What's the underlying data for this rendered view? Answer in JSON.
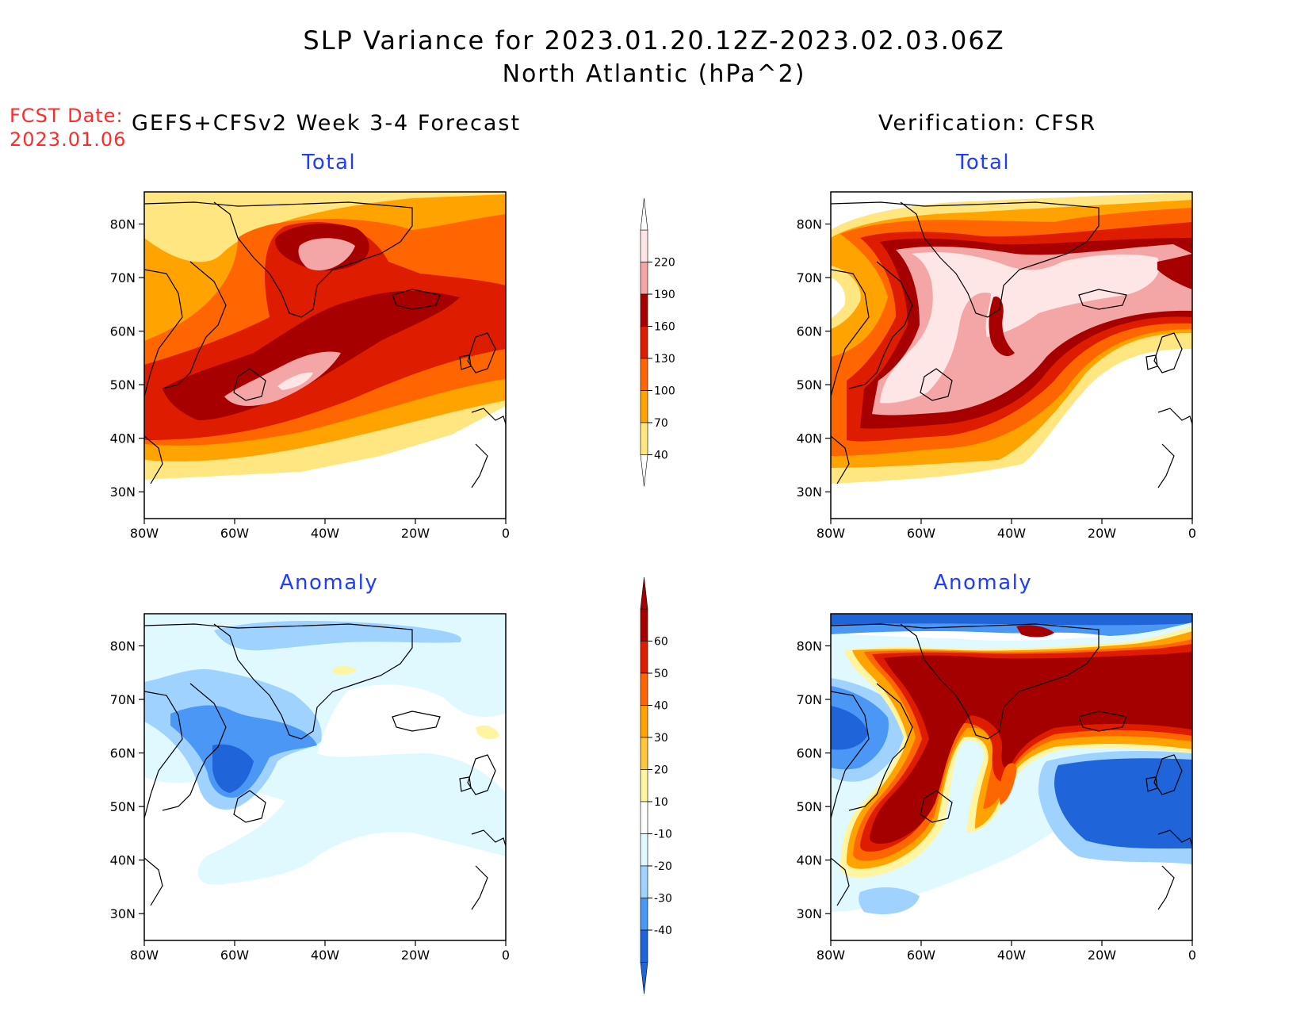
{
  "title": {
    "line1": "SLP Variance for 2023.01.20.12Z-2023.02.03.06Z",
    "line2": "North Atlantic (hPa^2)"
  },
  "fcst": {
    "label": "FCST Date:",
    "date": "2023.01.06"
  },
  "columns": {
    "left": "GEFS+CFSv2 Week 3-4 Forecast",
    "right": "Verification: CFSR"
  },
  "panel_titles": {
    "total": "Total",
    "anomaly": "Anomaly"
  },
  "axes": {
    "lat_ticks": [
      "80N",
      "70N",
      "60N",
      "50N",
      "40N",
      "30N"
    ],
    "lon_ticks": [
      "80W",
      "60W",
      "40W",
      "20W",
      "0"
    ]
  },
  "colorbar_total": {
    "levels": [
      "220",
      "190",
      "160",
      "130",
      "100",
      "70",
      "40"
    ],
    "colors": [
      "#ffe6e6",
      "#f4a6a6",
      "#a60000",
      "#dd1c00",
      "#ff6600",
      "#ffa300",
      "#ffe680"
    ]
  },
  "colorbar_anomaly": {
    "levels": [
      "60",
      "50",
      "40",
      "30",
      "20",
      "10",
      "-10",
      "-20",
      "-30",
      "-40"
    ],
    "colors": [
      "#a50000",
      "#dd1c00",
      "#ff6600",
      "#ffa300",
      "#ffc640",
      "#fff4a0",
      "#ffffff",
      "#dff9ff",
      "#9fd2ff",
      "#4b97f5",
      "#1f64d9"
    ]
  }
}
